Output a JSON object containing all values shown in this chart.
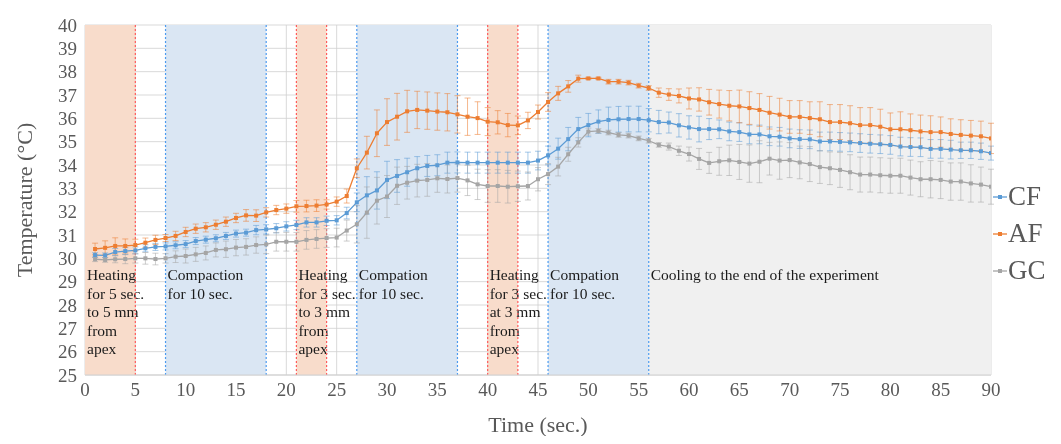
{
  "chart_data": {
    "type": "line",
    "xlabel": "Time (sec.)",
    "ylabel": "Temperature (°C)",
    "x": [
      1,
      2,
      3,
      4,
      5,
      6,
      7,
      8,
      9,
      10,
      11,
      12,
      13,
      14,
      15,
      16,
      17,
      18,
      19,
      20,
      21,
      22,
      23,
      24,
      25,
      26,
      27,
      28,
      29,
      30,
      31,
      32,
      33,
      34,
      35,
      36,
      37,
      38,
      39,
      40,
      41,
      42,
      43,
      44,
      45,
      46,
      47,
      48,
      49,
      50,
      51,
      52,
      53,
      54,
      55,
      56,
      57,
      58,
      59,
      60,
      61,
      62,
      63,
      64,
      65,
      66,
      67,
      68,
      69,
      70,
      71,
      72,
      73,
      74,
      75,
      76,
      77,
      78,
      79,
      80,
      81,
      82,
      83,
      84,
      85,
      86,
      87,
      88,
      89,
      90
    ],
    "xlim": [
      0,
      90
    ],
    "xticks": [
      0,
      5,
      10,
      15,
      20,
      25,
      30,
      35,
      40,
      45,
      50,
      55,
      60,
      65,
      70,
      75,
      80,
      85,
      90
    ],
    "ylim": [
      25,
      40
    ],
    "yticks": [
      25,
      26,
      27,
      28,
      29,
      30,
      31,
      32,
      33,
      34,
      35,
      36,
      37,
      38,
      39,
      40
    ],
    "grid": true,
    "legend": "right",
    "marker": "square",
    "line_style": "solid",
    "bands": [
      {
        "axis": "x",
        "from": 0,
        "to": 5,
        "label": "Heating\nfor 5 sec.\nto 5 mm\nfrom\napex",
        "color": "#f8dccb"
      },
      {
        "axis": "x",
        "from": 8,
        "to": 18,
        "label": "Compaction\nfor 10 sec.",
        "color": "#dae6f3"
      },
      {
        "axis": "x",
        "from": 21,
        "to": 24,
        "label": "Heating\nfor 3 sec.\nto 3 mm\nfrom\napex",
        "color": "#f8dccb"
      },
      {
        "axis": "x",
        "from": 27,
        "to": 37,
        "label": "Compation\nfor 10 sec.",
        "color": "#dae6f3"
      },
      {
        "axis": "x",
        "from": 40,
        "to": 43,
        "label": "Heating\nfor 3 sec.\nat 3 mm\nfrom\napex",
        "color": "#f8dccb"
      },
      {
        "axis": "x",
        "from": 46,
        "to": 56,
        "label": "Compation\nfor 10 sec.",
        "color": "#dae6f3"
      },
      {
        "axis": "x",
        "from": 56,
        "to": 90,
        "label": "Cooling to the end of the experiment",
        "color": "#f0f0f0"
      }
    ],
    "ref_lines": [
      {
        "axis": "x",
        "value": 5,
        "color": "#ff5a5a",
        "line_style": "dotted"
      },
      {
        "axis": "x",
        "value": 8,
        "color": "#4c9bf0",
        "line_style": "dotted"
      },
      {
        "axis": "x",
        "value": 18,
        "color": "#4c9bf0",
        "line_style": "dotted"
      },
      {
        "axis": "x",
        "value": 21,
        "color": "#ff5a5a",
        "line_style": "dotted"
      },
      {
        "axis": "x",
        "value": 24,
        "color": "#ff5a5a",
        "line_style": "dotted"
      },
      {
        "axis": "x",
        "value": 27,
        "color": "#4c9bf0",
        "line_style": "dotted"
      },
      {
        "axis": "x",
        "value": 37,
        "color": "#4c9bf0",
        "line_style": "dotted"
      },
      {
        "axis": "x",
        "value": 40,
        "color": "#ff5a5a",
        "line_style": "dotted"
      },
      {
        "axis": "x",
        "value": 43,
        "color": "#ff5a5a",
        "line_style": "dotted"
      },
      {
        "axis": "x",
        "value": 46,
        "color": "#4c9bf0",
        "line_style": "dotted"
      },
      {
        "axis": "x",
        "value": 56,
        "color": "#4c9bf0",
        "line_style": "dotted"
      }
    ],
    "series": [
      {
        "name": "CF",
        "color": "#5b9bd5",
        "values": [
          30.14,
          30.13,
          30.27,
          30.31,
          30.34,
          30.43,
          30.49,
          30.51,
          30.56,
          30.61,
          30.74,
          30.8,
          30.86,
          30.96,
          31.06,
          31.1,
          31.21,
          31.24,
          31.29,
          31.37,
          31.43,
          31.54,
          31.54,
          31.61,
          31.63,
          31.94,
          32.4,
          32.7,
          32.91,
          33.36,
          33.53,
          33.69,
          33.86,
          33.96,
          33.99,
          34.1,
          34.11,
          34.1,
          34.1,
          34.1,
          34.1,
          34.1,
          34.1,
          34.1,
          34.19,
          34.41,
          34.7,
          35.11,
          35.54,
          35.71,
          35.86,
          35.93,
          35.96,
          35.97,
          35.97,
          35.92,
          35.84,
          35.82,
          35.7,
          35.61,
          35.54,
          35.54,
          35.53,
          35.44,
          35.41,
          35.31,
          35.31,
          35.23,
          35.21,
          35.14,
          35.11,
          35.1,
          35.01,
          35.01,
          34.99,
          34.97,
          34.94,
          34.91,
          34.89,
          34.86,
          34.79,
          34.77,
          34.76,
          34.69,
          34.69,
          34.66,
          34.63,
          34.63,
          34.59,
          34.51
        ],
        "errors": [
          0.1,
          0.1,
          0.15,
          0.15,
          0.15,
          0.15,
          0.15,
          0.15,
          0.15,
          0.15,
          0.15,
          0.15,
          0.15,
          0.15,
          0.15,
          0.15,
          0.2,
          0.2,
          0.2,
          0.2,
          0.2,
          0.2,
          0.2,
          0.2,
          0.2,
          0.25,
          0.4,
          0.8,
          0.8,
          0.8,
          0.7,
          0.6,
          0.5,
          0.45,
          0.45,
          0.45,
          0.45,
          0.45,
          0.45,
          0.45,
          0.45,
          0.45,
          0.45,
          0.45,
          0.4,
          0.4,
          0.45,
          0.5,
          0.5,
          0.5,
          0.5,
          0.55,
          0.55,
          0.55,
          0.55,
          0.5,
          0.5,
          0.45,
          0.5,
          0.5,
          0.55,
          0.45,
          0.4,
          0.4,
          0.4,
          0.4,
          0.4,
          0.4,
          0.4,
          0.4,
          0.4,
          0.4,
          0.4,
          0.4,
          0.4,
          0.4,
          0.4,
          0.4,
          0.4,
          0.4,
          0.4,
          0.4,
          0.4,
          0.4,
          0.4,
          0.4,
          0.35,
          0.35,
          0.35,
          0.3
        ]
      },
      {
        "name": "AF",
        "color": "#ed7d31",
        "values": [
          30.4,
          30.45,
          30.53,
          30.53,
          30.57,
          30.67,
          30.79,
          30.87,
          30.96,
          31.13,
          31.27,
          31.33,
          31.44,
          31.57,
          31.73,
          31.84,
          31.83,
          31.97,
          32.07,
          32.13,
          32.23,
          32.24,
          32.26,
          32.31,
          32.43,
          32.67,
          33.86,
          34.53,
          35.36,
          35.84,
          36.07,
          36.3,
          36.36,
          36.33,
          36.29,
          36.26,
          36.17,
          36.07,
          36.01,
          35.86,
          35.83,
          35.71,
          35.7,
          35.91,
          36.27,
          36.7,
          37.07,
          37.37,
          37.7,
          37.71,
          37.71,
          37.57,
          37.57,
          37.53,
          37.4,
          37.3,
          37.1,
          37.02,
          36.96,
          36.85,
          36.81,
          36.69,
          36.61,
          36.54,
          36.51,
          36.44,
          36.36,
          36.24,
          36.16,
          36.06,
          36.06,
          36.01,
          35.96,
          35.84,
          35.84,
          35.79,
          35.71,
          35.71,
          35.64,
          35.53,
          35.53,
          35.49,
          35.44,
          35.41,
          35.41,
          35.33,
          35.29,
          35.26,
          35.23,
          35.14
        ],
        "errors": [
          0.25,
          0.3,
          0.35,
          0.3,
          0.25,
          0.2,
          0.2,
          0.15,
          0.2,
          0.2,
          0.2,
          0.2,
          0.2,
          0.2,
          0.2,
          0.25,
          0.25,
          0.2,
          0.2,
          0.2,
          0.25,
          0.25,
          0.25,
          0.2,
          0.2,
          0.3,
          0.4,
          0.7,
          1,
          1,
          1,
          0.9,
          0.8,
          0.8,
          0.8,
          0.8,
          0.8,
          0.8,
          0.7,
          0.6,
          0.5,
          0.5,
          0.4,
          0.35,
          0.3,
          0.4,
          0.3,
          0.25,
          0.15,
          0.05,
          0.05,
          0.1,
          0.1,
          0.1,
          0.1,
          0.1,
          0.2,
          0.25,
          0.3,
          0.45,
          0.5,
          0.55,
          0.6,
          0.65,
          0.7,
          0.7,
          0.7,
          0.7,
          0.7,
          0.7,
          0.7,
          0.7,
          0.75,
          0.75,
          0.75,
          0.75,
          0.75,
          0.75,
          0.75,
          0.7,
          0.75,
          0.7,
          0.7,
          0.7,
          0.65,
          0.65,
          0.65,
          0.65,
          0.65,
          0.65
        ]
      },
      {
        "name": "GC",
        "color": "#a5a5a5",
        "values": [
          29.96,
          29.93,
          29.96,
          29.97,
          30,
          30,
          29.97,
          30,
          30.07,
          30.1,
          30.17,
          30.23,
          30.36,
          30.39,
          30.46,
          30.49,
          30.57,
          30.6,
          30.71,
          30.71,
          30.71,
          30.79,
          30.83,
          30.87,
          30.89,
          31.19,
          31.46,
          31.96,
          32.47,
          32.65,
          33.11,
          33.24,
          33.33,
          33.36,
          33.43,
          33.4,
          33.44,
          33.34,
          33.17,
          33.1,
          33.1,
          33.07,
          33.09,
          33.1,
          33.39,
          33.61,
          33.93,
          34.46,
          34.97,
          35.43,
          35.46,
          35.39,
          35.29,
          35.26,
          35.14,
          35.04,
          34.86,
          34.79,
          34.61,
          34.47,
          34.26,
          34.09,
          34.16,
          34.2,
          34.13,
          34.06,
          34.14,
          34.27,
          34.19,
          34.21,
          34.11,
          34.04,
          33.91,
          33.86,
          33.79,
          33.69,
          33.59,
          33.59,
          33.56,
          33.54,
          33.54,
          33.46,
          33.39,
          33.39,
          33.36,
          33.29,
          33.29,
          33.21,
          33.16,
          33.07
        ],
        "errors": [
          0.1,
          0.1,
          0.15,
          0.2,
          0.2,
          0.25,
          0.25,
          0.2,
          0.25,
          0.3,
          0.3,
          0.3,
          0.3,
          0.35,
          0.35,
          0.35,
          0.35,
          0.4,
          0.4,
          0.4,
          0.4,
          0.4,
          0.4,
          0.4,
          0.4,
          0.45,
          0.8,
          1.1,
          1,
          0.9,
          0.8,
          0.7,
          0.7,
          0.7,
          0.6,
          0.6,
          0.6,
          0.65,
          0.65,
          0.7,
          0.7,
          0.7,
          0.65,
          0.6,
          0.5,
          0.45,
          0.4,
          0.3,
          0.2,
          0.15,
          0.1,
          0.1,
          0.1,
          0.1,
          0.1,
          0.1,
          0.1,
          0.15,
          0.2,
          0.3,
          0.45,
          0.45,
          0.6,
          0.65,
          0.75,
          0.8,
          0.9,
          0.7,
          0.8,
          0.75,
          0.7,
          0.75,
          0.7,
          0.7,
          0.75,
          0.75,
          0.75,
          0.75,
          0.75,
          0.75,
          0.75,
          0.75,
          0.75,
          0.8,
          0.8,
          0.8,
          0.8,
          0.8,
          0.75,
          0.75
        ]
      }
    ]
  }
}
